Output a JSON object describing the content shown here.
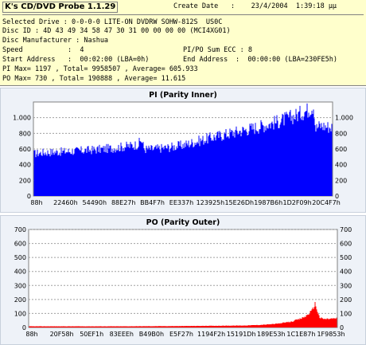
{
  "header": {
    "app_title": "K's CD/DVD Probe 1.1.29",
    "create_date_label": "Create Date",
    "create_date_value": ":    23/4/2004  1:39:18 µµ",
    "lines": [
      "Selected Drive : 0-0-0-0 LITE-ON DVDRW SOHW-812S  US0C",
      "Disc ID : 4D 43 49 34 58 47 30 31 00 00 00 00 (MCI4XG01)",
      "Disc Manufacturer : Nashua"
    ],
    "speed_label": "Speed",
    "speed_value": ":  4",
    "sum_ecc": "PI/PO Sum ECC : 8",
    "start_addr_label": "Start Address",
    "start_addr_value": ":  00:02:00 (LBA=0h)",
    "end_addr_label": "End Address",
    "end_addr_value": ":  00:00:00 (LBA=230FE5h)",
    "pi_stats": "PI Max= 1197 , Total= 9958507 , Average= 605.933",
    "po_stats": "PO Max= 730 , Total= 190888 , Average= 11.615"
  },
  "colors": {
    "pi_fill": "#0000ff",
    "po_fill": "#ff0000",
    "header_bg": "#ffffcc",
    "panel_bg": "#eef2f8"
  },
  "chart_data": [
    {
      "type": "bar",
      "title": "PI (Parity Inner)",
      "x_tick_labels": [
        "88h",
        "22460h",
        "54490h",
        "88E27h",
        "BB4F7h",
        "EE337h",
        "123925h",
        "15E26Dh",
        "1987B6h",
        "1D2F09h",
        "20C4F7h"
      ],
      "ylim": [
        0,
        1200
      ],
      "y_ticks": [
        0,
        200,
        400,
        600,
        800,
        1000
      ],
      "y_tick_labels": [
        "0",
        "200",
        "400",
        "600",
        "800",
        "1.000"
      ],
      "grid": true,
      "profile": {
        "x": [
          0.0,
          0.03,
          0.12,
          0.2,
          0.26,
          0.32,
          0.35,
          0.36,
          0.37,
          0.4,
          0.45,
          0.5,
          0.55,
          0.6,
          0.68,
          0.75,
          0.82,
          0.88,
          0.92,
          0.94,
          0.945,
          0.96,
          1.0
        ],
        "values": [
          540,
          555,
          570,
          590,
          610,
          640,
          660,
          720,
          600,
          600,
          620,
          650,
          700,
          750,
          820,
          880,
          950,
          1030,
          1100,
          1160,
          860,
          900,
          880
        ]
      }
    },
    {
      "type": "bar",
      "title": "PO (Parity Outer)",
      "x_tick_labels": [
        "88h",
        "20F58h",
        "50EF1h",
        "83EEEh",
        "B49B0h",
        "E5F27h",
        "1194F2h",
        "15191Dh",
        "189E53h",
        "1C1E87h",
        "1F9853h"
      ],
      "ylim": [
        0,
        700
      ],
      "y_ticks": [
        0,
        100,
        200,
        300,
        400,
        500,
        600,
        700
      ],
      "y_tick_labels": [
        "0",
        "100",
        "200",
        "300",
        "400",
        "500",
        "600",
        "700"
      ],
      "grid": true,
      "profile": {
        "x": [
          0.0,
          0.3,
          0.5,
          0.6,
          0.7,
          0.75,
          0.8,
          0.85,
          0.88,
          0.9,
          0.92,
          0.93,
          0.945,
          0.96,
          1.0
        ],
        "values": [
          8,
          8,
          10,
          12,
          14,
          18,
          25,
          40,
          60,
          80,
          120,
          170,
          70,
          60,
          65
        ]
      }
    }
  ]
}
